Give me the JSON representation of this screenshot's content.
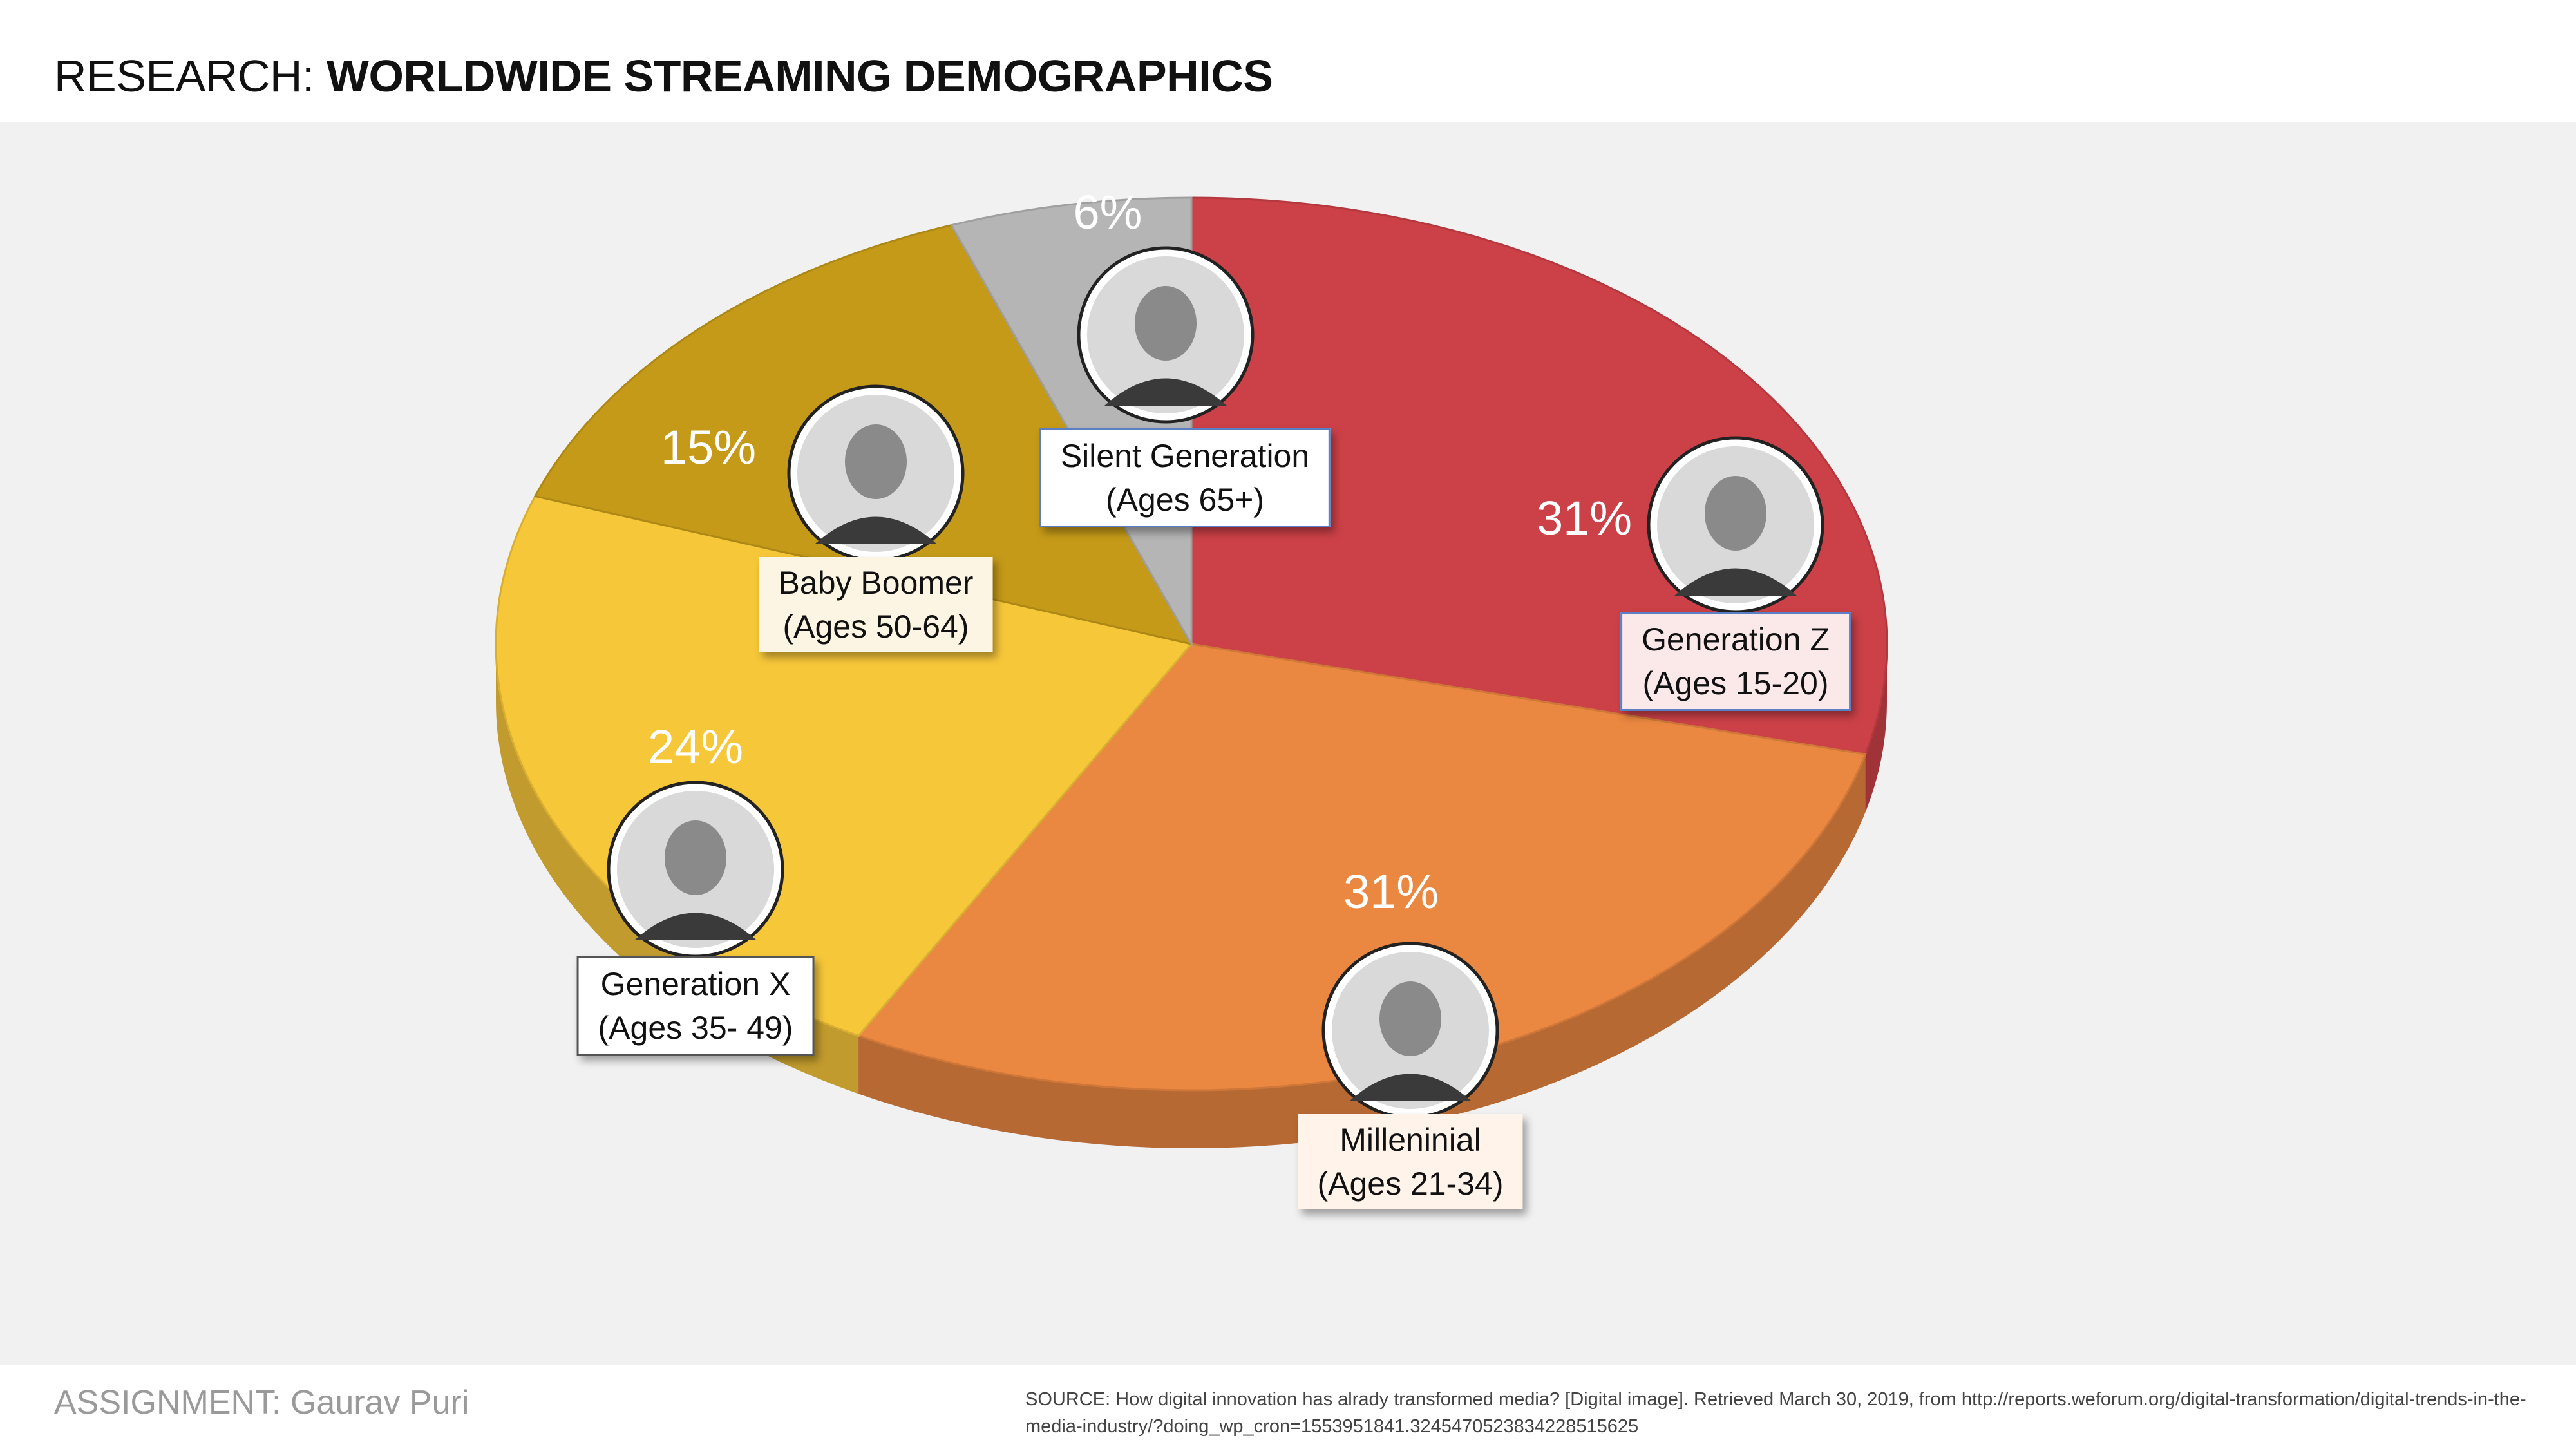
{
  "header": {
    "title_prefix": "RESEARCH: ",
    "title_main": "WORLDWIDE STREAMING DEMOGRAPHICS"
  },
  "footer": {
    "assignment": "ASSIGNMENT: Gaurav Puri",
    "source": "SOURCE: How digital innovation has alrady transformed media? [Digital image]. Retrieved March 30, 2019, from http://reports.weforum.org/digital-transformation/digital-trends-in-the-media-industry/?doing_wp_cron=1553951841.3245470523834228515625"
  },
  "chart_data": {
    "type": "pie",
    "title": "",
    "slices": [
      {
        "label": "Generation Z",
        "ages": "(Ages 15-20)",
        "value": 31,
        "value_label": "31%",
        "color": "#cc4148",
        "icon": "person-photo-icon"
      },
      {
        "label": "Milleninial",
        "ages": "(Ages 21-34)",
        "value": 31,
        "value_label": "31%",
        "color": "#ea8741",
        "icon": "person-photo-icon"
      },
      {
        "label": "Generation X",
        "ages": "(Ages 35- 49)",
        "value": 24,
        "value_label": "24%",
        "color": "#f7c73a",
        "icon": "person-photo-icon"
      },
      {
        "label": "Baby Boomer",
        "ages": "(Ages 50-64)",
        "value": 15,
        "value_label": "15%",
        "color": "#c59a18",
        "icon": "person-photo-icon"
      },
      {
        "label": "Silent Generation",
        "ages": "(Ages 65+)",
        "value": 6,
        "value_label": "6%",
        "color": "#b5b5b5",
        "icon": "person-photo-icon"
      }
    ]
  }
}
